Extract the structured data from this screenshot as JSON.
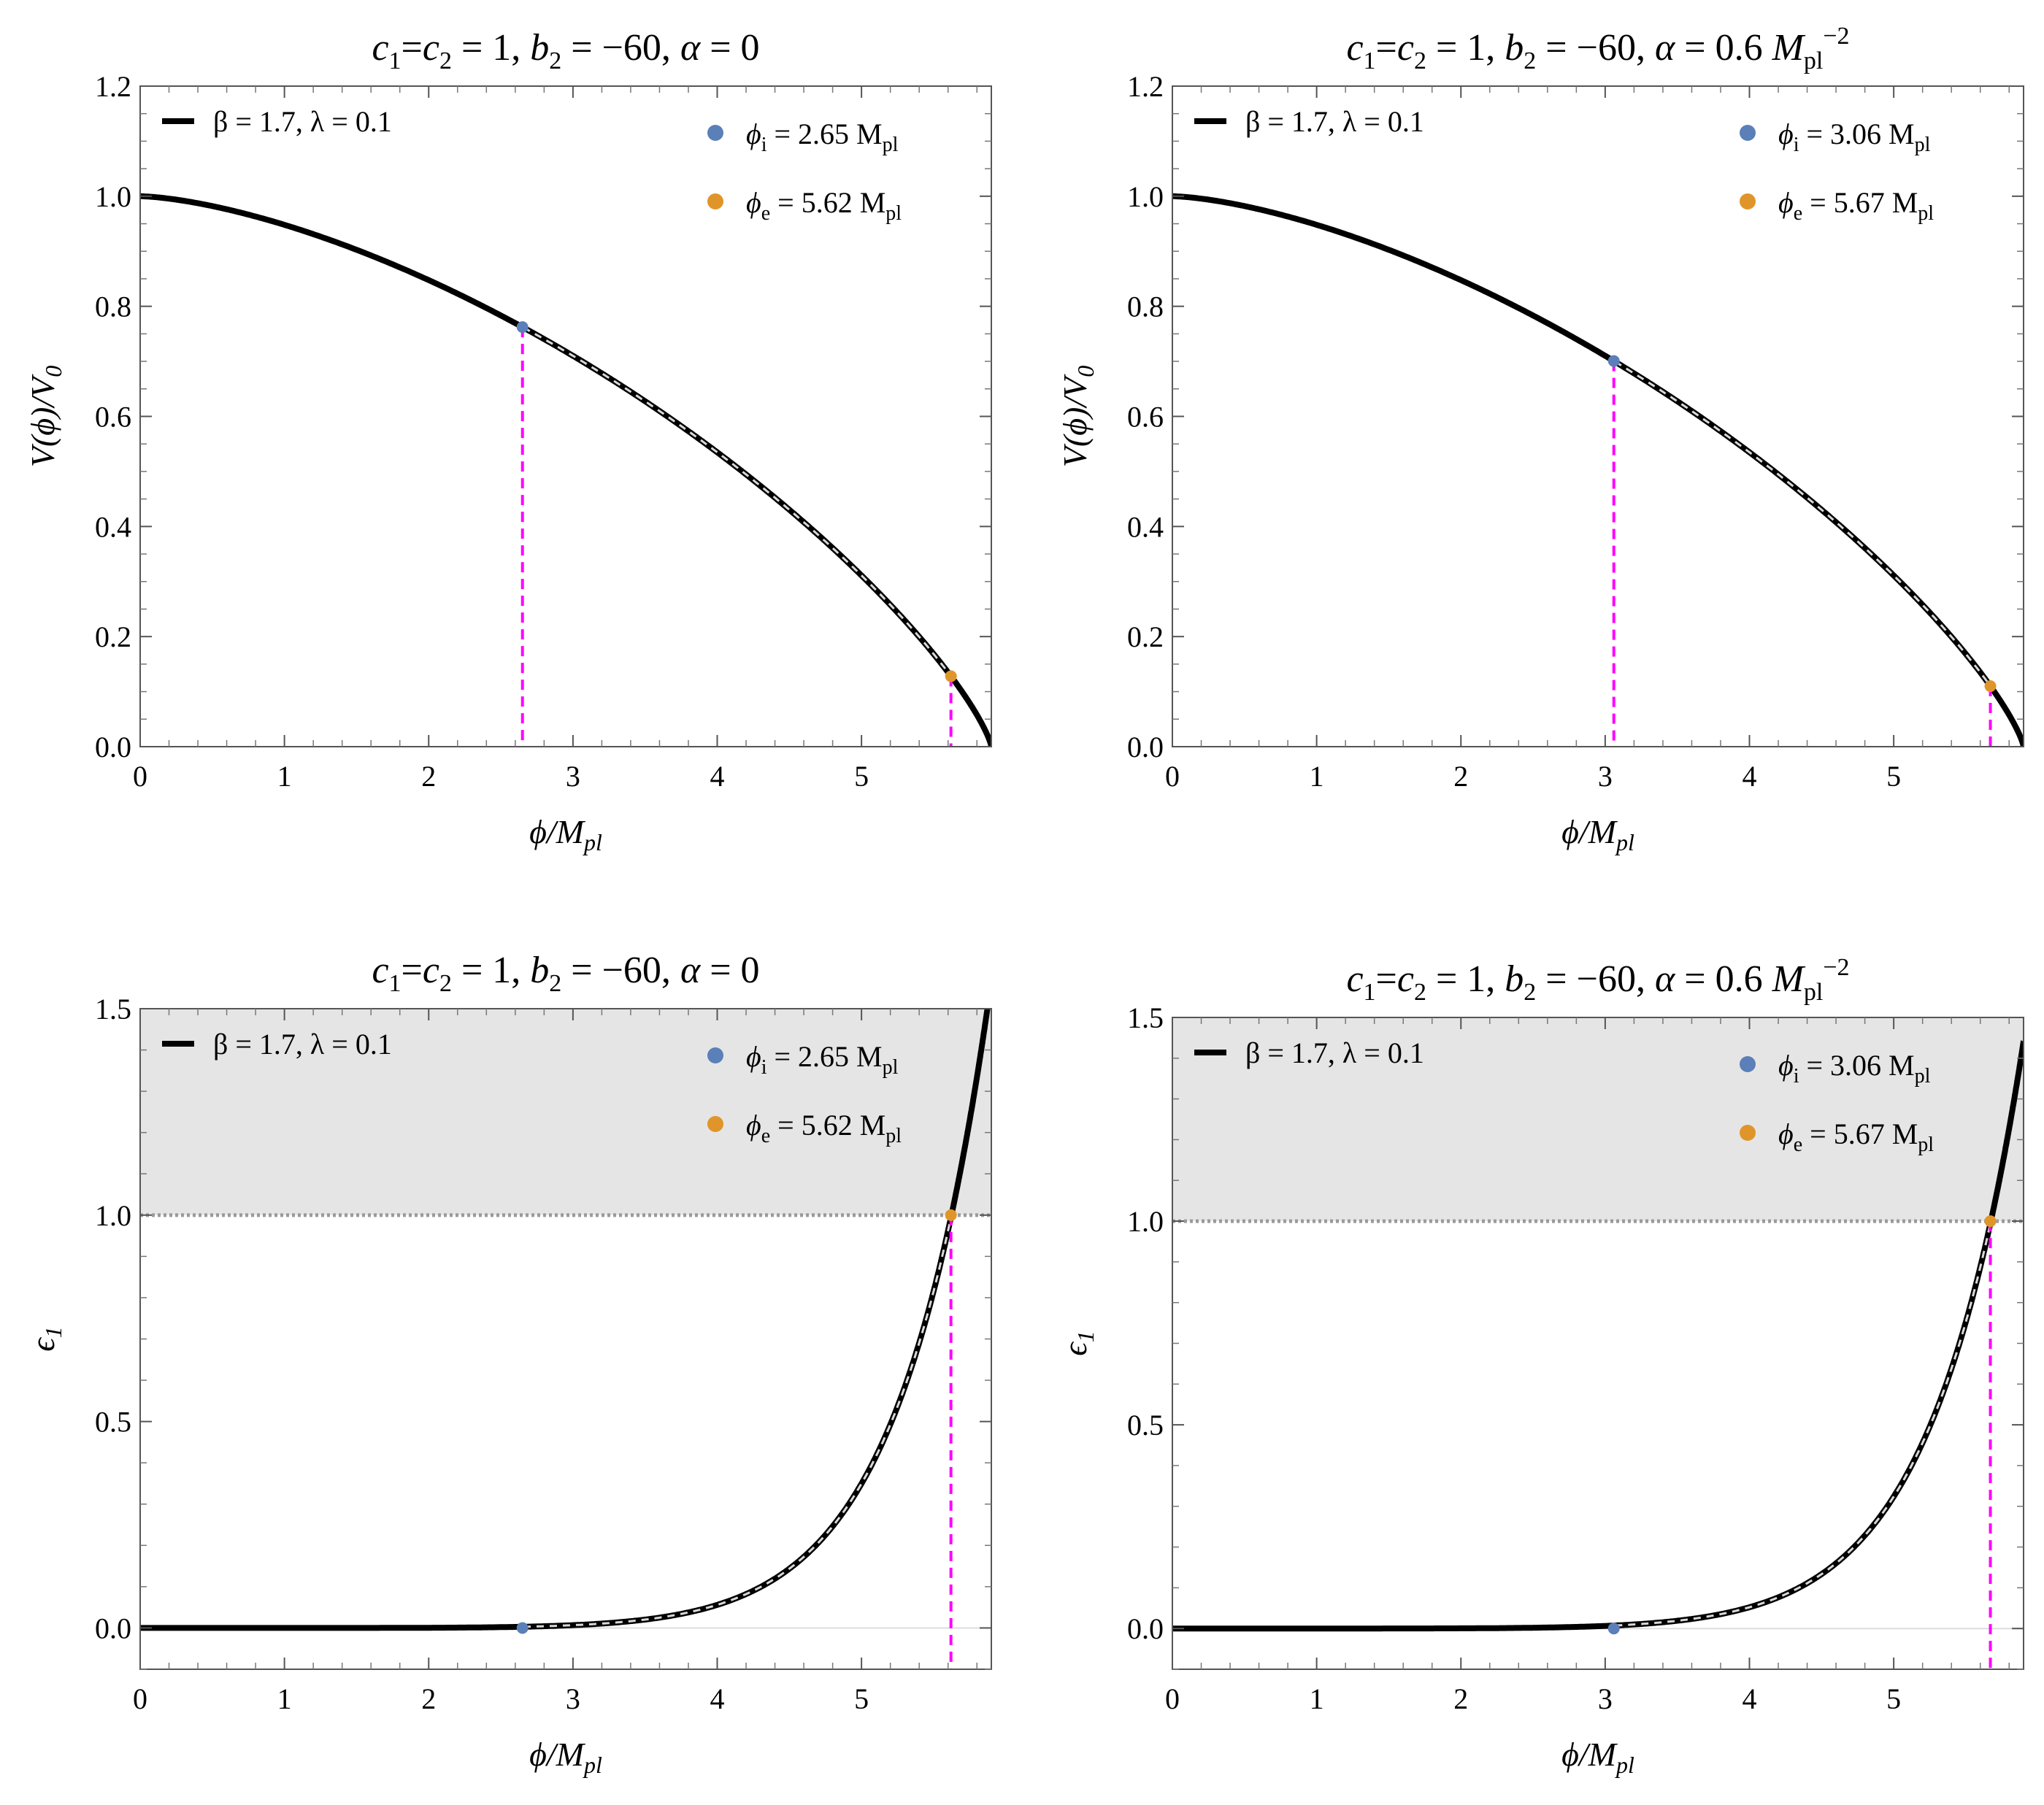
{
  "figure": {
    "description_title": "Inflationary potential and first slow-roll parameter"
  },
  "chart_data": [
    {
      "type": "line",
      "panel": "top-left",
      "title_parts": {
        "c1": "c",
        "c1_sub": "1",
        "eq": "=",
        "c2": "c",
        "c2_sub": "2",
        "rest1": " = 1, ",
        "b": "b",
        "b_sub": "2",
        "rest2": " = −60, ",
        "alpha": "α",
        "rest3": " = 0",
        "unit": "",
        "unit_sub": "",
        "unit_sup": ""
      },
      "xlabel": {
        "phi": "ϕ",
        "slash": "/",
        "M": "M",
        "sub": "pl"
      },
      "ylabel": {
        "text": "V(ϕ)/V",
        "sub": "0"
      },
      "x_range": [
        0,
        5.9
      ],
      "y_range": [
        0,
        1.2
      ],
      "x_ticks": [
        "0",
        "1",
        "2",
        "3",
        "4",
        "5"
      ],
      "y_ticks": [
        "0.0",
        "0.2",
        "0.4",
        "0.6",
        "0.8",
        "1.0",
        "1.2"
      ],
      "legend": {
        "line": "β = 1.7, λ = 0.1",
        "phi_i": {
          "sym": "ϕ",
          "sub": "i",
          "text": " = 2.65 M",
          "unit_sub": "pl"
        },
        "phi_e": {
          "sym": "ϕ",
          "sub": "e",
          "text": " = 5.62 M",
          "unit_sub": "pl"
        }
      },
      "phi_i": 2.65,
      "phi_e": 5.62,
      "params": {
        "beta": 1.7,
        "lambda": 0.1,
        "phi_max": 5.9
      },
      "curve_kind": "potential",
      "colors": {
        "curve": "#000000",
        "phi_i": "#5b7fb8",
        "phi_e": "#e0952a",
        "marker": "#ff00ff",
        "shade": "#e5e5e5"
      }
    },
    {
      "type": "line",
      "panel": "top-right",
      "title_parts": {
        "c1": "c",
        "c1_sub": "1",
        "eq": "=",
        "c2": "c",
        "c2_sub": "2",
        "rest1": " = 1, ",
        "b": "b",
        "b_sub": "2",
        "rest2": " = −60, ",
        "alpha": "α",
        "rest3": " = 0.6 ",
        "unit": "M",
        "unit_sub": "pl",
        "unit_sup": "−2"
      },
      "xlabel": {
        "phi": "ϕ",
        "slash": "/",
        "M": "M",
        "sub": "pl"
      },
      "ylabel": {
        "text": "V(ϕ)/V",
        "sub": "0"
      },
      "x_range": [
        0,
        5.9
      ],
      "y_range": [
        0,
        1.2
      ],
      "x_ticks": [
        "0",
        "1",
        "2",
        "3",
        "4",
        "5"
      ],
      "y_ticks": [
        "0.0",
        "0.2",
        "0.4",
        "0.6",
        "0.8",
        "1.0",
        "1.2"
      ],
      "legend": {
        "line": "β = 1.7, λ = 0.1",
        "phi_i": {
          "sym": "ϕ",
          "sub": "i",
          "text": " = 3.06 M",
          "unit_sub": "pl"
        },
        "phi_e": {
          "sym": "ϕ",
          "sub": "e",
          "text": " = 5.67 M",
          "unit_sub": "pl"
        }
      },
      "phi_i": 3.06,
      "phi_e": 5.67,
      "params": {
        "beta": 1.7,
        "lambda": 0.1,
        "phi_max": 5.9
      },
      "curve_kind": "potential",
      "colors": {
        "curve": "#000000",
        "phi_i": "#5b7fb8",
        "phi_e": "#e0952a",
        "marker": "#ff00ff",
        "shade": "#e5e5e5"
      }
    },
    {
      "type": "line",
      "panel": "bottom-left",
      "title_parts": {
        "c1": "c",
        "c1_sub": "1",
        "eq": "=",
        "c2": "c",
        "c2_sub": "2",
        "rest1": " = 1, ",
        "b": "b",
        "b_sub": "2",
        "rest2": " = −60, ",
        "alpha": "α",
        "rest3": " = 0",
        "unit": "",
        "unit_sub": "",
        "unit_sup": ""
      },
      "xlabel": {
        "phi": "ϕ",
        "slash": "/",
        "M": "M",
        "sub": "pl"
      },
      "ylabel": {
        "text": "ϵ",
        "sub": "1"
      },
      "x_range": [
        0,
        5.9
      ],
      "y_range": [
        -0.1,
        1.5
      ],
      "x_ticks": [
        "0",
        "1",
        "2",
        "3",
        "4",
        "5"
      ],
      "y_ticks": [
        "0.0",
        "0.5",
        "1.0",
        "1.5"
      ],
      "legend": {
        "line": "β = 1.7, λ = 0.1",
        "phi_i": {
          "sym": "ϕ",
          "sub": "i",
          "text": " = 2.65 M",
          "unit_sub": "pl"
        },
        "phi_e": {
          "sym": "ϕ",
          "sub": "e",
          "text": " = 5.62 M",
          "unit_sub": "pl"
        }
      },
      "phi_i": 2.65,
      "phi_e": 5.62,
      "shaded_above": 1.0,
      "curve_kind": "epsilon",
      "colors": {
        "curve": "#000000",
        "phi_i": "#5b7fb8",
        "phi_e": "#e0952a",
        "marker": "#ff00ff",
        "shade": "#e5e5e5"
      }
    },
    {
      "type": "line",
      "panel": "bottom-right",
      "title_parts": {
        "c1": "c",
        "c1_sub": "1",
        "eq": "=",
        "c2": "c",
        "c2_sub": "2",
        "rest1": " = 1, ",
        "b": "b",
        "b_sub": "2",
        "rest2": " = −60, ",
        "alpha": "α",
        "rest3": " = 0.6 ",
        "unit": "M",
        "unit_sub": "pl",
        "unit_sup": "−2"
      },
      "xlabel": {
        "phi": "ϕ",
        "slash": "/",
        "M": "M",
        "sub": "pl"
      },
      "ylabel": {
        "text": "ϵ",
        "sub": "1"
      },
      "x_range": [
        0,
        5.9
      ],
      "y_range": [
        -0.1,
        1.5
      ],
      "x_ticks": [
        "0",
        "1",
        "2",
        "3",
        "4",
        "5"
      ],
      "y_ticks": [
        "0.0",
        "0.5",
        "1.0",
        "1.5"
      ],
      "legend": {
        "line": "β = 1.7, λ = 0.1",
        "phi_i": {
          "sym": "ϕ",
          "sub": "i",
          "text": " = 3.06 M",
          "unit_sub": "pl"
        },
        "phi_e": {
          "sym": "ϕ",
          "sub": "e",
          "text": " = 5.67 M",
          "unit_sub": "pl"
        }
      },
      "phi_i": 3.06,
      "phi_e": 5.67,
      "shaded_above": 1.0,
      "curve_kind": "epsilon",
      "colors": {
        "curve": "#000000",
        "phi_i": "#5b7fb8",
        "phi_e": "#e0952a",
        "marker": "#ff00ff",
        "shade": "#e5e5e5"
      }
    }
  ]
}
